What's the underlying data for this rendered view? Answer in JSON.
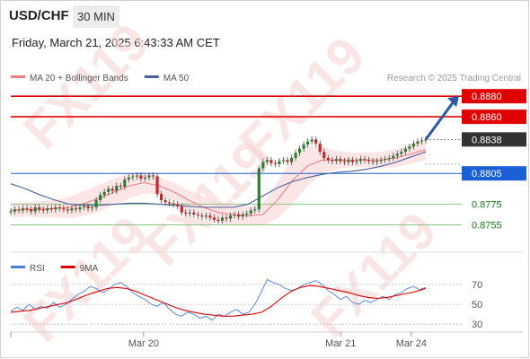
{
  "header": {
    "pair": "USD/CHF",
    "timeframe": "30 MIN",
    "datetime": "Friday, March 21, 2025 6:43:33 AM CET"
  },
  "watermark": "FX119",
  "chart_data": [
    {
      "type": "line",
      "panel": "price",
      "title": "",
      "ylim": [
        0.8745,
        0.8888
      ],
      "legend": {
        "placement": "top-left",
        "entries": [
          {
            "label": "MA 20 + Bollinger Bands",
            "color": "#f08080"
          },
          {
            "label": "MA 50",
            "color": "#4a5fa0"
          }
        ]
      },
      "source_note": "Research © 2025 Trading Central",
      "levels": [
        {
          "label": "0.8880",
          "value": 0.888,
          "style": "resistance",
          "color": "#e00000"
        },
        {
          "label": "0.8860",
          "value": 0.886,
          "style": "resistance",
          "color": "#e00000"
        },
        {
          "label": "0.8838",
          "value": 0.8838,
          "style": "last-price",
          "color": "#333333"
        },
        {
          "label": "0.8805",
          "value": 0.8805,
          "style": "pivot",
          "color": "#1a5fd6"
        },
        {
          "label": "0.8775",
          "value": 0.8775,
          "style": "support",
          "color": "#2e8b2e"
        },
        {
          "label": "0.8755",
          "value": 0.8755,
          "style": "support",
          "color": "#2e8b2e"
        }
      ],
      "forecast_arrow": {
        "from": 0.8838,
        "to": 0.888,
        "color": "#2b5aa8"
      },
      "series": [
        {
          "name": "price",
          "values": [
            0.8768,
            0.877,
            0.8769,
            0.8771,
            0.877,
            0.8768,
            0.8772,
            0.877,
            0.8769,
            0.8771,
            0.877,
            0.8772,
            0.8771,
            0.877,
            0.8769,
            0.8771,
            0.877,
            0.8772,
            0.8773,
            0.8771,
            0.8772,
            0.8779,
            0.8784,
            0.8787,
            0.879,
            0.8788,
            0.8793,
            0.8792,
            0.8799,
            0.8801,
            0.8802,
            0.8803,
            0.88,
            0.8801,
            0.8803,
            0.8802,
            0.8785,
            0.8779,
            0.8777,
            0.8776,
            0.8775,
            0.8773,
            0.8767,
            0.8766,
            0.8767,
            0.8765,
            0.8764,
            0.8763,
            0.8764,
            0.8762,
            0.876,
            0.8759,
            0.8762,
            0.8761,
            0.8764,
            0.8765,
            0.8763,
            0.8765,
            0.8766,
            0.8769,
            0.877,
            0.881,
            0.8816,
            0.8818,
            0.8815,
            0.8814,
            0.8817,
            0.8818,
            0.8816,
            0.882,
            0.8825,
            0.8829,
            0.8833,
            0.8836,
            0.8838,
            0.8834,
            0.8826,
            0.882,
            0.8818,
            0.8817,
            0.8819,
            0.8817,
            0.8816,
            0.8818,
            0.8816,
            0.8817,
            0.8819,
            0.8818,
            0.8817,
            0.8816,
            0.8817,
            0.8818,
            0.8819,
            0.882,
            0.8822,
            0.8824,
            0.8826,
            0.8829,
            0.8831,
            0.8834,
            0.8836,
            0.8837,
            0.8838
          ]
        },
        {
          "name": "MA 20",
          "values": [
            0.8769,
            0.877,
            0.877,
            0.8771,
            0.8772,
            0.8776,
            0.8781,
            0.8787,
            0.8793,
            0.8796,
            0.8793,
            0.8787,
            0.8779,
            0.8772,
            0.8767,
            0.8765,
            0.8764,
            0.8765,
            0.8779,
            0.8798,
            0.8812,
            0.8818,
            0.8818,
            0.8818,
            0.8818,
            0.8818,
            0.882,
            0.8824,
            0.8828
          ]
        },
        {
          "name": "MA 50",
          "values": [
            0.8795,
            0.879,
            0.8784,
            0.8779,
            0.8775,
            0.8774,
            0.8774,
            0.8775,
            0.8776,
            0.8776,
            0.8775,
            0.8774,
            0.8773,
            0.8772,
            0.8772,
            0.8772,
            0.8775,
            0.8783,
            0.8791,
            0.8797,
            0.8801,
            0.8804,
            0.8806,
            0.8807,
            0.8809,
            0.8812,
            0.8816,
            0.8821,
            0.8826
          ]
        }
      ]
    },
    {
      "type": "line",
      "panel": "rsi",
      "title": "",
      "ylim": [
        22,
        80
      ],
      "y_ticks": [
        70,
        50,
        30
      ],
      "legend": {
        "placement": "top-left",
        "entries": [
          {
            "label": "RSI",
            "color": "#4a7fd6"
          },
          {
            "label": "9MA",
            "color": "#e00000"
          }
        ]
      },
      "x_ticks": [
        {
          "label": "Mar 20",
          "position": 0.32
        },
        {
          "label": "Mar 21",
          "position": 0.795
        },
        {
          "label": "Mar 24",
          "position": 0.965
        }
      ],
      "series": [
        {
          "name": "RSI",
          "values": [
            43,
            47,
            44,
            50,
            45,
            48,
            46,
            52,
            47,
            50,
            55,
            60,
            63,
            68,
            66,
            62,
            65,
            70,
            72,
            68,
            62,
            58,
            55,
            50,
            48,
            52,
            45,
            40,
            38,
            42,
            40,
            36,
            38,
            34,
            40,
            38,
            42,
            45,
            40,
            42,
            50,
            62,
            75,
            72,
            70,
            66,
            64,
            66,
            70,
            72,
            74,
            70,
            64,
            60,
            55,
            58,
            52,
            50,
            54,
            52,
            55,
            58,
            55,
            60,
            62,
            66,
            68,
            65,
            67
          ]
        },
        {
          "name": "9MA",
          "values": [
            42,
            43,
            44,
            46,
            48,
            50,
            52,
            56,
            60,
            63,
            66,
            67,
            66,
            63,
            59,
            55,
            51,
            47,
            44,
            42,
            40,
            39,
            38,
            38,
            39,
            40,
            42,
            48,
            56,
            63,
            67,
            69,
            68,
            66,
            64,
            62,
            59,
            57,
            56,
            57,
            59,
            61,
            63,
            66
          ]
        }
      ]
    }
  ]
}
